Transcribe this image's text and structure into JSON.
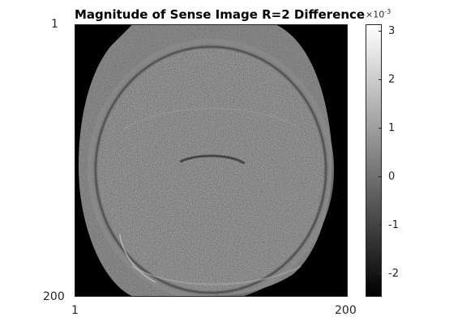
{
  "figure": {
    "title": "Magnitude of Sense Image R=2 Difference",
    "x_ticks": [
      "1",
      "200"
    ],
    "y_ticks": [
      "1",
      "200"
    ],
    "colorbar": {
      "ticks": [
        "3",
        "2",
        "1",
        "0",
        "-1",
        "-2"
      ],
      "exponent_base": "×10",
      "exponent_power": "-3",
      "range": [
        -0.0025,
        0.0031
      ]
    },
    "colormap": "gray"
  }
}
